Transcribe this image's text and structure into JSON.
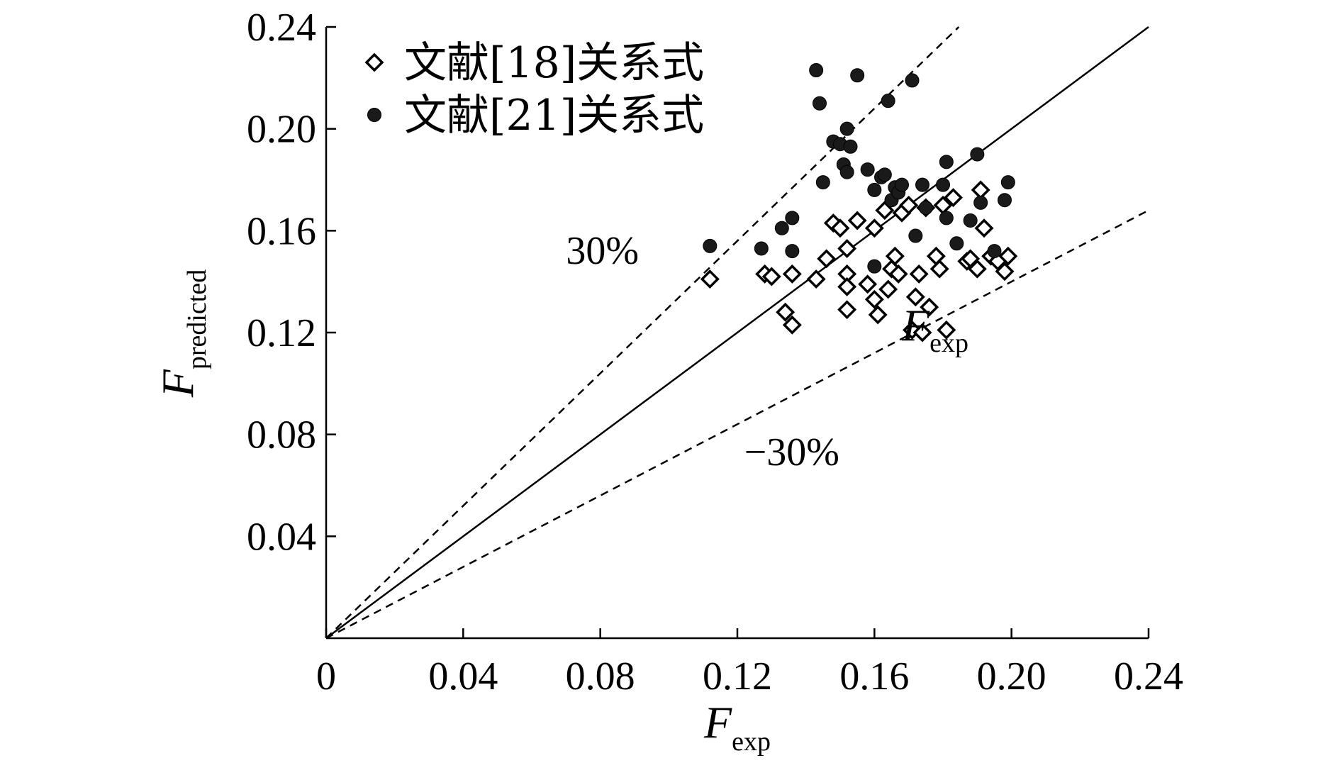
{
  "chart_data": {
    "type": "scatter",
    "xlabel": "F",
    "xlabel_sub": "exp",
    "ylabel": "F",
    "ylabel_sub": "predicted",
    "xlim": [
      0,
      0.24
    ],
    "ylim": [
      0,
      0.24
    ],
    "x_ticks": [
      0,
      0.04,
      0.08,
      0.12,
      0.16,
      0.2,
      0.24
    ],
    "x_tick_labels": [
      "0",
      "0.04",
      "0.08",
      "0.12",
      "0.16",
      "0.20",
      "0.24"
    ],
    "y_ticks": [
      0.04,
      0.08,
      0.12,
      0.16,
      0.2,
      0.24
    ],
    "y_tick_labels": [
      "0.04",
      "0.08",
      "0.12",
      "0.16",
      "0.20",
      "0.24"
    ],
    "grid": false,
    "legend_position": "top-left",
    "reference_lines": [
      {
        "label": "",
        "style": "solid",
        "slope": 1.0
      },
      {
        "label": "30%",
        "style": "dashed",
        "slope": 1.3
      },
      {
        "label": "−30%",
        "style": "dashed",
        "slope": 0.7
      }
    ],
    "annotations": [
      {
        "text": "30%",
        "x": 0.07,
        "y": 0.147
      },
      {
        "text": "−30%",
        "x": 0.122,
        "y": 0.068
      },
      {
        "text": "F",
        "sub": "exp",
        "x": 0.168,
        "y": 0.117
      }
    ],
    "series": [
      {
        "name": "文献[18]关系式",
        "marker": "diamond",
        "points": [
          [
            0.112,
            0.141
          ],
          [
            0.128,
            0.143
          ],
          [
            0.13,
            0.142
          ],
          [
            0.136,
            0.143
          ],
          [
            0.134,
            0.128
          ],
          [
            0.136,
            0.123
          ],
          [
            0.143,
            0.141
          ],
          [
            0.146,
            0.149
          ],
          [
            0.148,
            0.163
          ],
          [
            0.15,
            0.161
          ],
          [
            0.152,
            0.153
          ],
          [
            0.152,
            0.143
          ],
          [
            0.152,
            0.138
          ],
          [
            0.152,
            0.129
          ],
          [
            0.155,
            0.164
          ],
          [
            0.158,
            0.139
          ],
          [
            0.16,
            0.161
          ],
          [
            0.16,
            0.133
          ],
          [
            0.161,
            0.127
          ],
          [
            0.163,
            0.168
          ],
          [
            0.164,
            0.137
          ],
          [
            0.165,
            0.145
          ],
          [
            0.166,
            0.15
          ],
          [
            0.167,
            0.143
          ],
          [
            0.168,
            0.167
          ],
          [
            0.17,
            0.17
          ],
          [
            0.171,
            0.121
          ],
          [
            0.172,
            0.134
          ],
          [
            0.173,
            0.143
          ],
          [
            0.174,
            0.12
          ],
          [
            0.175,
            0.169
          ],
          [
            0.176,
            0.13
          ],
          [
            0.178,
            0.15
          ],
          [
            0.179,
            0.145
          ],
          [
            0.18,
            0.17
          ],
          [
            0.181,
            0.121
          ],
          [
            0.183,
            0.173
          ],
          [
            0.187,
            0.148
          ],
          [
            0.188,
            0.149
          ],
          [
            0.19,
            0.145
          ],
          [
            0.191,
            0.176
          ],
          [
            0.192,
            0.161
          ],
          [
            0.194,
            0.15
          ],
          [
            0.196,
            0.148
          ],
          [
            0.198,
            0.144
          ],
          [
            0.199,
            0.15
          ]
        ]
      },
      {
        "name": "文献[21]关系式",
        "marker": "filled-circle",
        "points": [
          [
            0.112,
            0.154
          ],
          [
            0.127,
            0.153
          ],
          [
            0.133,
            0.161
          ],
          [
            0.136,
            0.165
          ],
          [
            0.136,
            0.152
          ],
          [
            0.143,
            0.223
          ],
          [
            0.144,
            0.21
          ],
          [
            0.145,
            0.179
          ],
          [
            0.148,
            0.195
          ],
          [
            0.15,
            0.194
          ],
          [
            0.151,
            0.186
          ],
          [
            0.152,
            0.2
          ],
          [
            0.152,
            0.183
          ],
          [
            0.153,
            0.193
          ],
          [
            0.155,
            0.221
          ],
          [
            0.158,
            0.184
          ],
          [
            0.16,
            0.176
          ],
          [
            0.16,
            0.146
          ],
          [
            0.162,
            0.181
          ],
          [
            0.163,
            0.182
          ],
          [
            0.164,
            0.211
          ],
          [
            0.165,
            0.172
          ],
          [
            0.166,
            0.177
          ],
          [
            0.167,
            0.175
          ],
          [
            0.168,
            0.178
          ],
          [
            0.171,
            0.219
          ],
          [
            0.172,
            0.158
          ],
          [
            0.174,
            0.178
          ],
          [
            0.175,
            0.169
          ],
          [
            0.18,
            0.178
          ],
          [
            0.181,
            0.187
          ],
          [
            0.181,
            0.165
          ],
          [
            0.184,
            0.155
          ],
          [
            0.188,
            0.164
          ],
          [
            0.19,
            0.19
          ],
          [
            0.191,
            0.171
          ],
          [
            0.195,
            0.152
          ],
          [
            0.198,
            0.172
          ],
          [
            0.199,
            0.179
          ]
        ]
      }
    ]
  }
}
